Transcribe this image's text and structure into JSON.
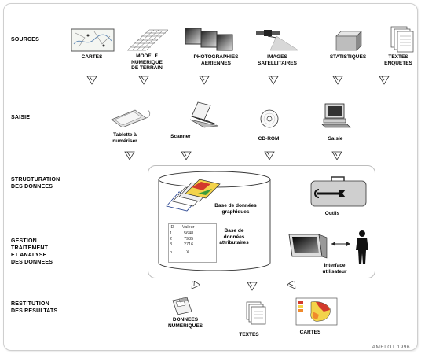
{
  "stages": {
    "sources": "SOURCES",
    "saisie": "SAISIE",
    "structuration": "STRUCTURATION\nDES DONNEES",
    "gestion": "GESTION\nTRAITEMENT\nET ANALYSE\nDES DONNEES",
    "restitution": "RESTITUTION\nDES RESULTATS"
  },
  "sources": {
    "cartes": "CARTES",
    "mnt": "MODELE\nNUMERIQUE\nDE TERRAIN",
    "photos": "PHOTOGRAPHIES\nAERIENNES",
    "images": "IMAGES\nSATELLITAIRES",
    "stats": "STATISTIQUES",
    "textes": "TEXTES\nENQUETES"
  },
  "saisie": {
    "tablette": "Tablette à\nnumériser",
    "scanner": "Scanner",
    "cdrom": "CD-ROM",
    "saisie": "Saisie"
  },
  "structure": {
    "graphiques": "Base de données\ngraphiques",
    "attributaires": "Base de\ndonnées\nattributaires",
    "outils": "Outils",
    "interface": "Interface\nutilisateur",
    "table_header_id": "ID",
    "table_header_val": "Valeur",
    "table_rows": [
      [
        "1",
        "5648"
      ],
      [
        "2",
        "7935"
      ],
      [
        "3",
        "2716"
      ],
      [
        "n",
        "X"
      ]
    ]
  },
  "restitution": {
    "donnees": "DONNEES\nNUMERIQUES",
    "textes": "TEXTES",
    "cartes": "CARTES"
  },
  "credit": "AMELOT 1996",
  "icons": {
    "map": "map-icon",
    "grid": "terrain-grid-icon",
    "photo": "aerial-photo-icon",
    "satellite": "satellite-icon",
    "stats": "statistics-box-icon",
    "docs": "documents-icon",
    "tablet": "digitizer-tablet-icon",
    "scanner": "scanner-icon",
    "cd": "cd-rom-icon",
    "computer": "computer-icon",
    "toolbox": "toolbox-icon",
    "workstation": "workstation-icon",
    "person": "person-icon",
    "floppy": "floppy-disk-icon",
    "colormap": "color-map-icon"
  },
  "colors": {
    "stroke": "#333333",
    "panel_border": "#bdbdbd",
    "map_red": "#d33a2c",
    "map_yellow": "#f3d34a"
  }
}
